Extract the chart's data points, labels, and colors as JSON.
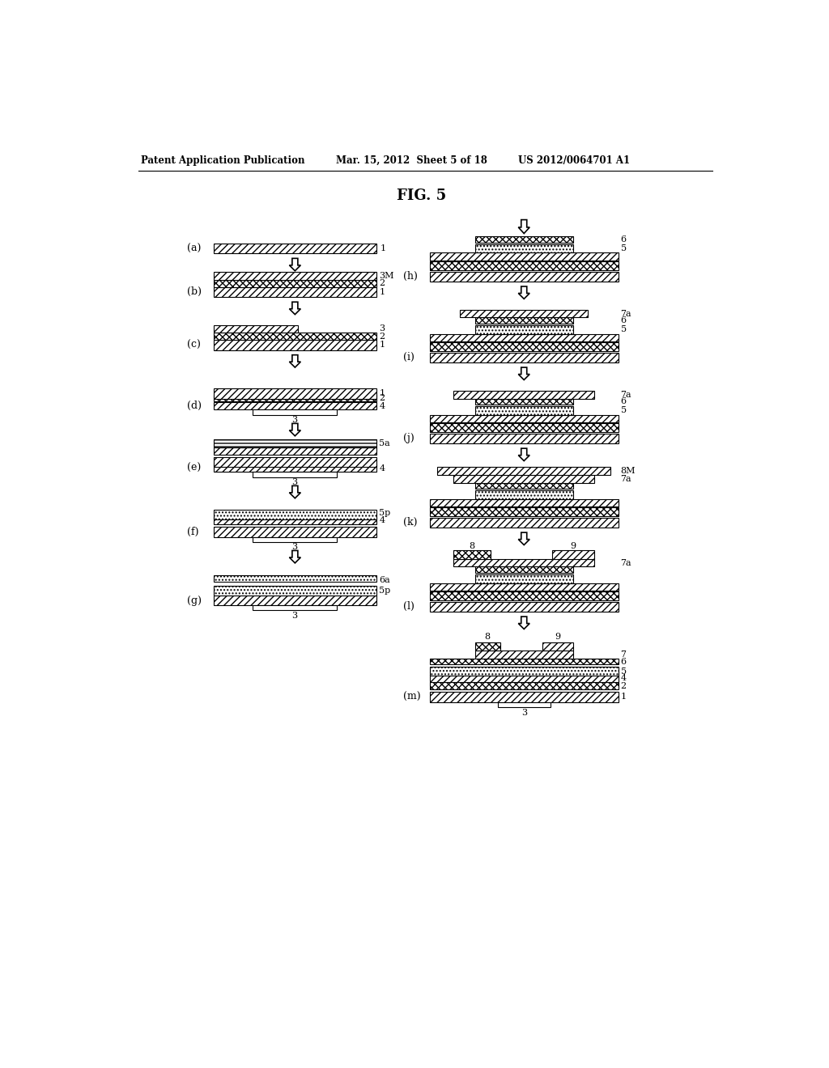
{
  "title": "FIG. 5",
  "header_left": "Patent Application Publication",
  "header_center": "Mar. 15, 2012  Sheet 5 of 18",
  "header_right": "US 2012/0064701 A1",
  "background": "#ffffff"
}
